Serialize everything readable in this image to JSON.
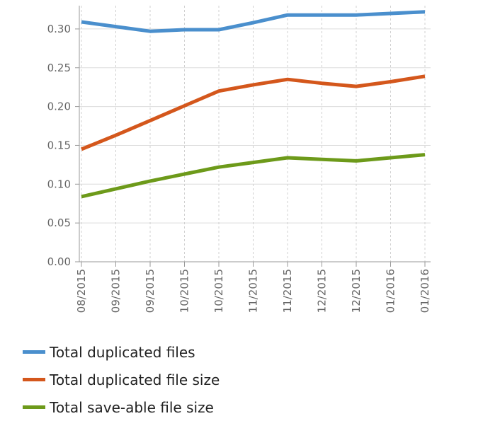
{
  "chart_data": {
    "type": "line",
    "x": [
      "08/2015",
      "09/2015",
      "09/2015",
      "10/2015",
      "10/2015",
      "11/2015",
      "11/2015",
      "12/2015",
      "12/2015",
      "01/2016",
      "01/2016"
    ],
    "series": [
      {
        "name": "Total duplicated files",
        "color": "#4a8fcd",
        "values": [
          0.309,
          0.303,
          0.297,
          0.299,
          0.299,
          0.308,
          0.318,
          0.318,
          0.318,
          0.32,
          0.322
        ]
      },
      {
        "name": "Total duplicated file size",
        "color": "#d4571c",
        "values": [
          0.145,
          0.163,
          0.182,
          0.201,
          0.22,
          0.228,
          0.235,
          0.23,
          0.226,
          0.232,
          0.239
        ]
      },
      {
        "name": "Total save-able file size",
        "color": "#6d9a1a",
        "values": [
          0.084,
          0.094,
          0.104,
          0.113,
          0.122,
          0.128,
          0.134,
          0.132,
          0.13,
          0.134,
          0.138
        ]
      }
    ],
    "yticks": [
      "0.00",
      "0.05",
      "0.10",
      "0.15",
      "0.20",
      "0.25",
      "0.30"
    ],
    "ylim": [
      0,
      0.33
    ],
    "grid": true,
    "legend": "bottom-left"
  }
}
